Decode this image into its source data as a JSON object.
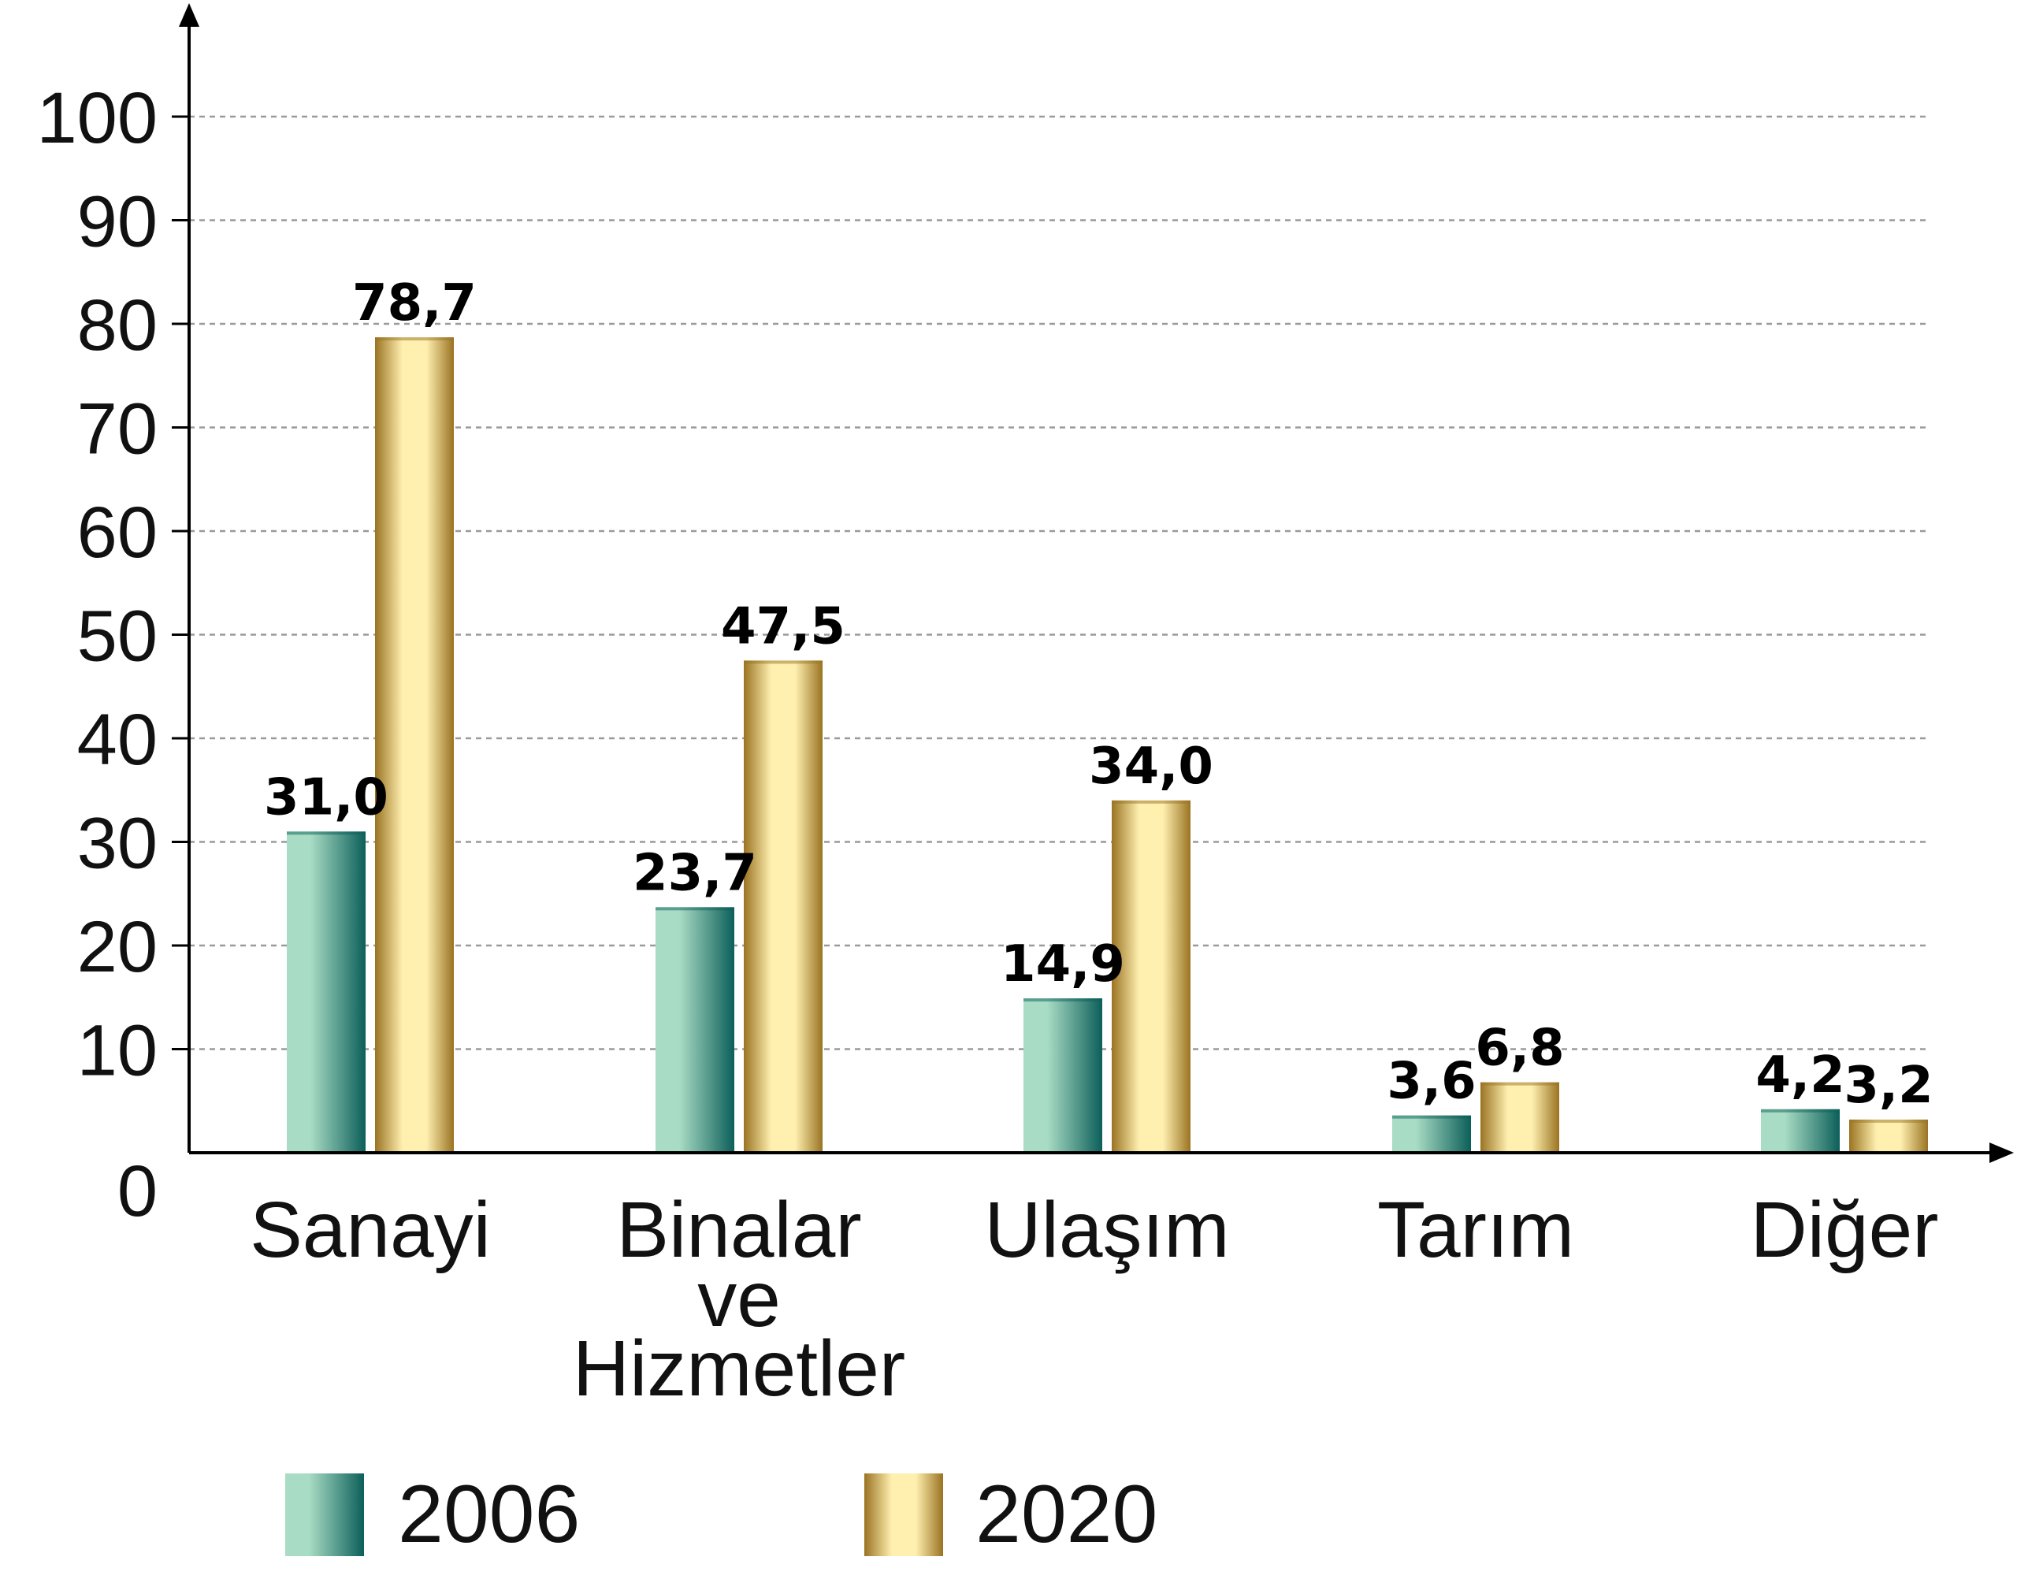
{
  "chart_data": {
    "type": "bar",
    "categories": [
      "Sanayi",
      "Binalar ve Hizmetler",
      "Ulaşım",
      "Tarım",
      "Diğer"
    ],
    "category_lines": [
      [
        "Sanayi"
      ],
      [
        "Binalar",
        "ve",
        "Hizmetler"
      ],
      [
        "Ulaşım"
      ],
      [
        "Tarım"
      ],
      [
        "Diğer"
      ]
    ],
    "series": [
      {
        "name": "2006",
        "values": [
          31.0,
          23.7,
          14.9,
          3.6,
          4.2
        ],
        "labels": [
          "31,0",
          "23,7",
          "14,9",
          "3,6",
          "4,2"
        ],
        "color": "#1a7f74"
      },
      {
        "name": "2020",
        "values": [
          78.7,
          47.5,
          34.0,
          6.8,
          3.2
        ],
        "labels": [
          "78,7",
          "47,5",
          "34,0",
          "6,8",
          "3,2"
        ],
        "color": "#d4a83c"
      }
    ],
    "yticks": [
      "0",
      "10",
      "20",
      "30",
      "40",
      "50",
      "60",
      "70",
      "80",
      "90",
      "100"
    ],
    "ylim": [
      0,
      100
    ],
    "grid": true,
    "legend_position": "bottom"
  },
  "colors": {
    "series_2006_dark": "#0c5f5a",
    "series_2006_light": "#a9dcc4",
    "series_2020_dark": "#9a7322",
    "series_2020_light": "#fff0b0",
    "grid": "#9a9a9a",
    "axis": "#000000"
  }
}
